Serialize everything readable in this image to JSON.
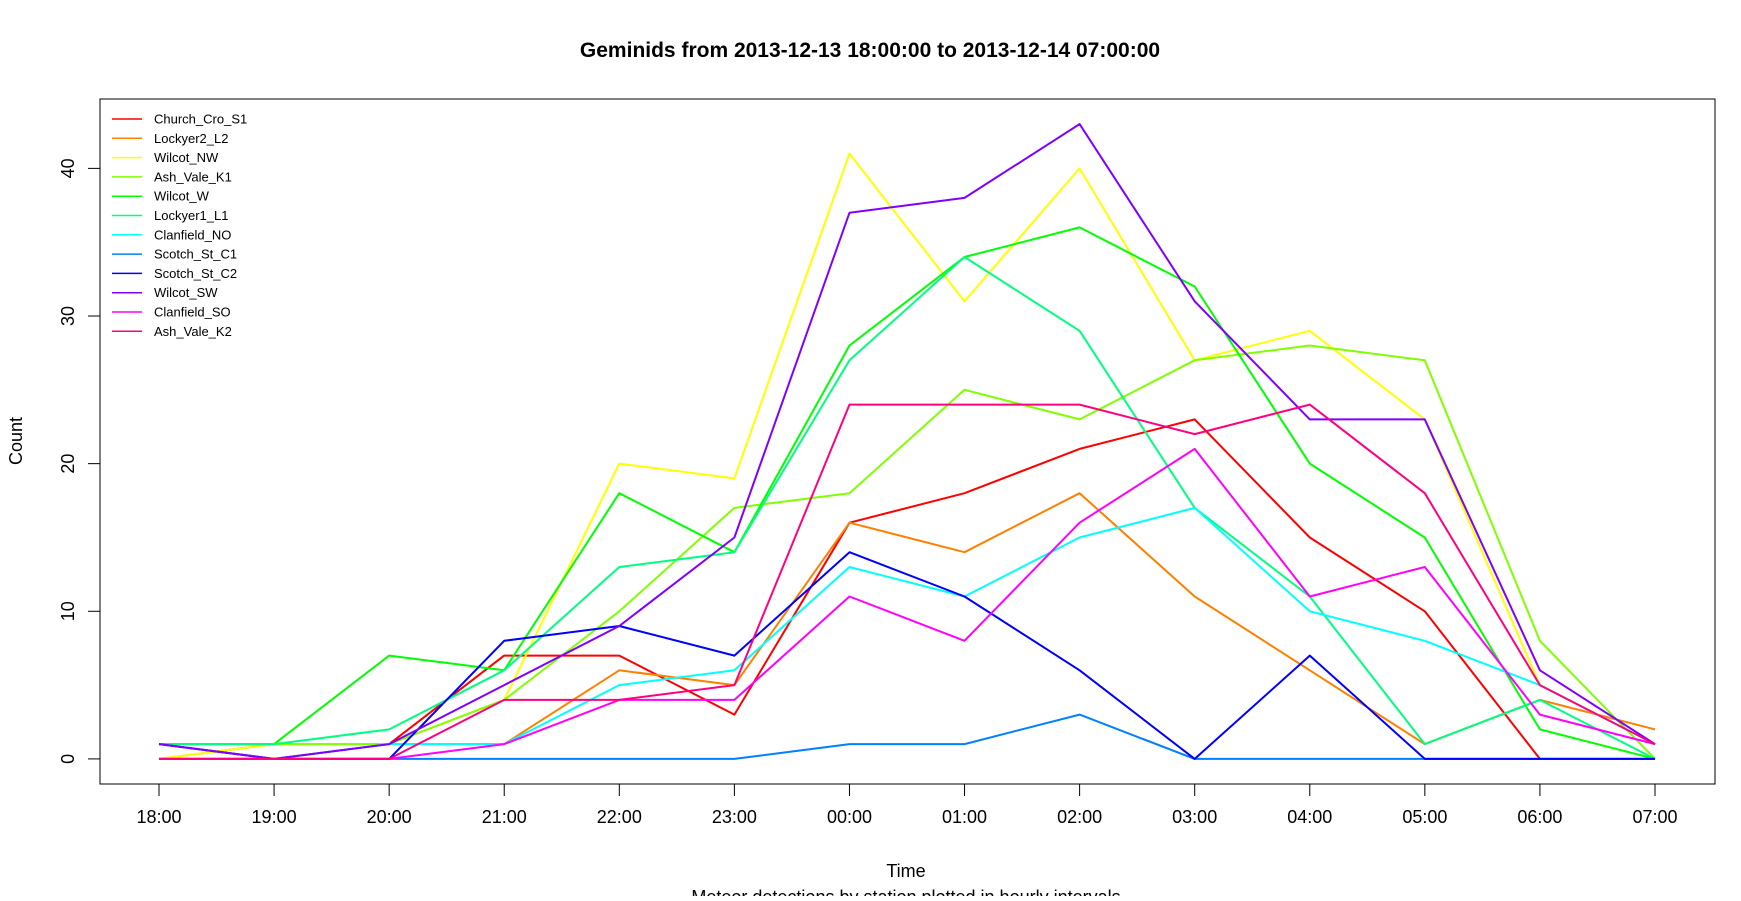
{
  "chart_data": {
    "type": "line",
    "title": "Geminids  from  2013-12-13 18:00:00  to  2013-12-14 07:00:00",
    "xlabel": "Time",
    "subtitle": "Meteor detections by station plotted in hourly intervals",
    "ylabel": "Count",
    "categories": [
      "18:00",
      "19:00",
      "20:00",
      "21:00",
      "22:00",
      "23:00",
      "00:00",
      "01:00",
      "02:00",
      "03:00",
      "04:00",
      "05:00",
      "06:00",
      "07:00"
    ],
    "yticks": [
      0,
      10,
      20,
      30,
      40
    ],
    "ylim": [
      -1.7,
      44.7
    ],
    "grid": false,
    "legend_position": "top-left",
    "series": [
      {
        "name": "Church_Cro_S1",
        "color": "#FF0000",
        "values": [
          0,
          0,
          1,
          7,
          7,
          3,
          16,
          18,
          21,
          23,
          15,
          10,
          0,
          0
        ]
      },
      {
        "name": "Lockyer2_L2",
        "color": "#FF8000",
        "values": [
          0,
          1,
          1,
          1,
          6,
          5,
          16,
          14,
          18,
          11,
          6,
          1,
          4,
          2
        ]
      },
      {
        "name": "Wilcot_NW",
        "color": "#FFFF00",
        "values": [
          0,
          1,
          1,
          4,
          20,
          19,
          41,
          31,
          40,
          27,
          29,
          23,
          5,
          1
        ]
      },
      {
        "name": "Ash_Vale_K1",
        "color": "#80FF00",
        "values": [
          1,
          1,
          1,
          4,
          10,
          17,
          18,
          25,
          23,
          27,
          28,
          27,
          8,
          0
        ]
      },
      {
        "name": "Wilcot_W",
        "color": "#00FF00",
        "values": [
          1,
          1,
          7,
          6,
          18,
          14,
          28,
          34,
          36,
          32,
          20,
          15,
          2,
          0
        ]
      },
      {
        "name": "Lockyer1_L1",
        "color": "#00FF80",
        "values": [
          1,
          1,
          2,
          6,
          13,
          14,
          27,
          34,
          29,
          17,
          11,
          1,
          4,
          0
        ]
      },
      {
        "name": "Clanfield_NO",
        "color": "#00FFFF",
        "values": [
          0,
          0,
          1,
          1,
          5,
          6,
          13,
          11,
          15,
          17,
          10,
          8,
          5,
          1
        ]
      },
      {
        "name": "Scotch_St_C1",
        "color": "#0080FF",
        "values": [
          0,
          0,
          0,
          0,
          0,
          0,
          1,
          1,
          3,
          0,
          0,
          0,
          0,
          0
        ]
      },
      {
        "name": "Scotch_St_C2",
        "color": "#0000FF",
        "values": [
          1,
          0,
          0,
          8,
          9,
          7,
          14,
          11,
          6,
          0,
          7,
          0,
          0,
          0
        ]
      },
      {
        "name": "Wilcot_SW",
        "color": "#8000FF",
        "values": [
          1,
          0,
          1,
          5,
          9,
          15,
          37,
          38,
          43,
          31,
          23,
          23,
          6,
          1
        ]
      },
      {
        "name": "Clanfield_SO",
        "color": "#FF00FF",
        "values": [
          0,
          0,
          0,
          1,
          4,
          4,
          11,
          8,
          16,
          21,
          11,
          13,
          3,
          1
        ]
      },
      {
        "name": "Ash_Vale_K2",
        "color": "#FF0080",
        "values": [
          0,
          0,
          0,
          4,
          4,
          5,
          24,
          24,
          24,
          22,
          24,
          18,
          5,
          1
        ]
      }
    ]
  }
}
